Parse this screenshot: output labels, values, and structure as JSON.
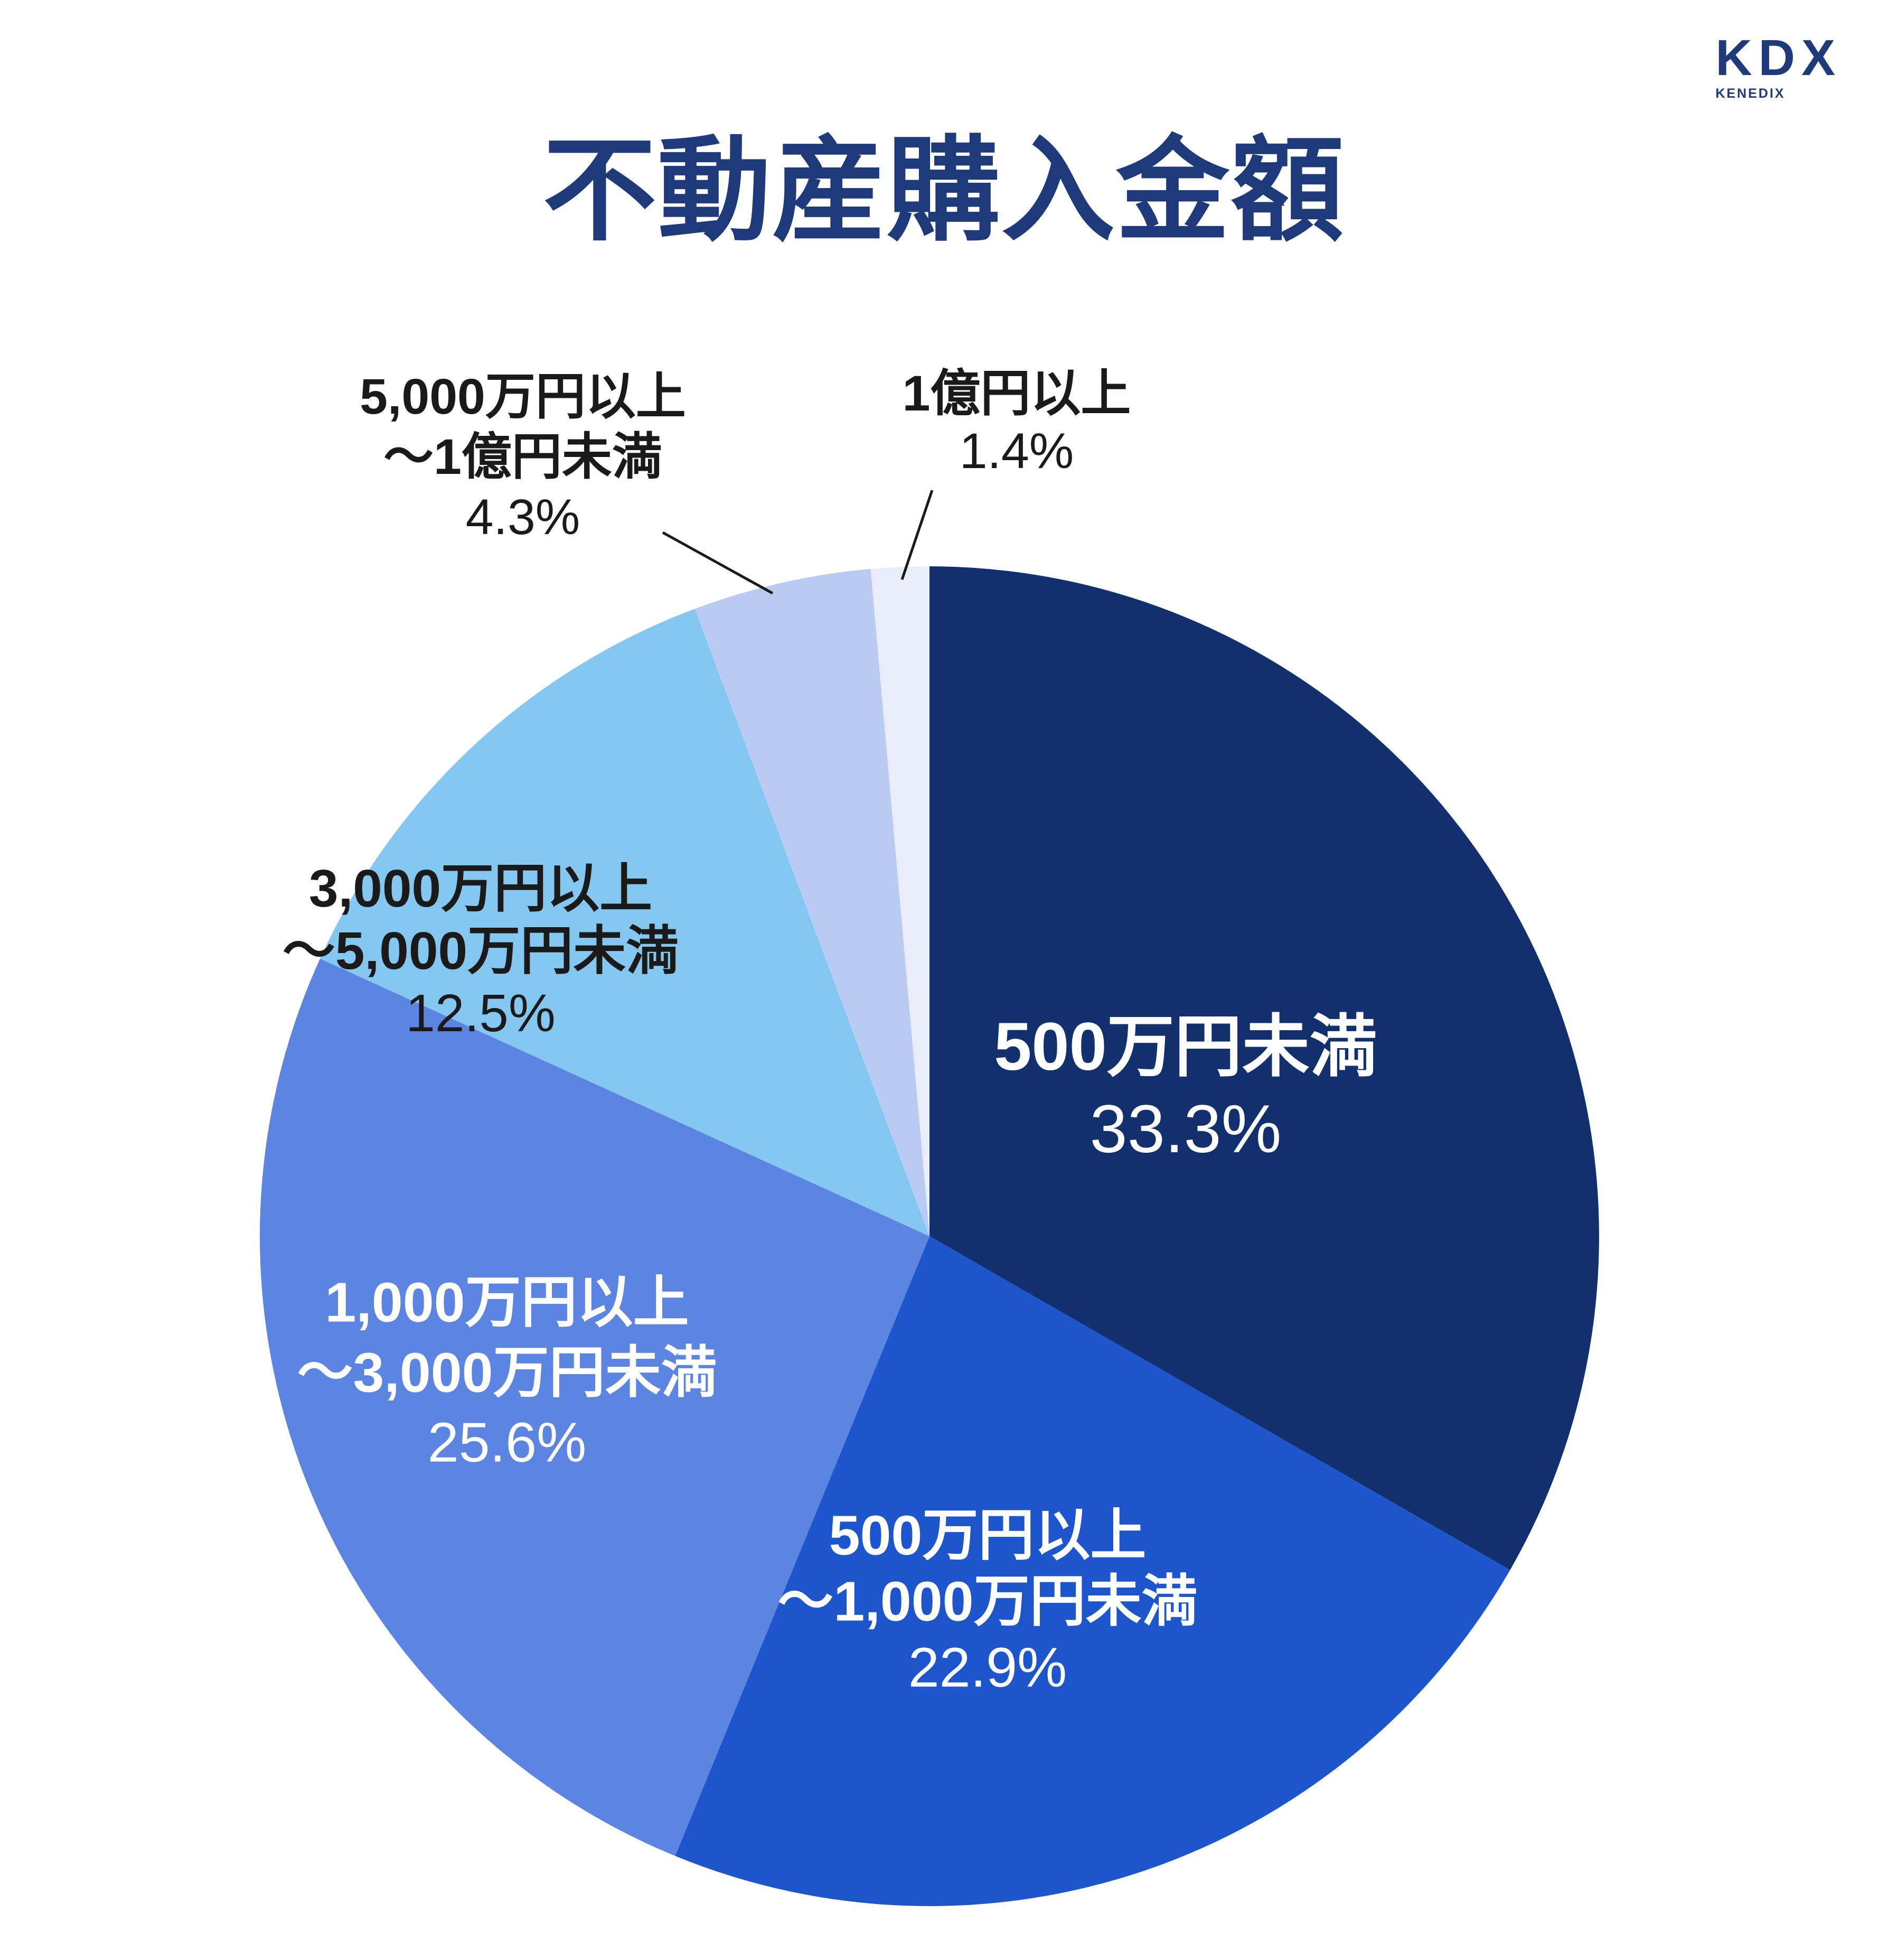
{
  "logo": {
    "text": "KDX",
    "subtext": "KENEDIX",
    "color": "#1e3a7a"
  },
  "title": {
    "text": "不動産購入金額",
    "color": "#1e3a7a"
  },
  "chart_data": {
    "type": "pie",
    "title": "不動産購入金額",
    "start_angle_deg": 0,
    "direction": "clockwise",
    "legend": "none",
    "total_pct": 100.0,
    "segments": [
      {
        "label": "500万円未満",
        "label_lines": [
          "500万円未満"
        ],
        "pct": 33.3,
        "pct_label": "33.3%",
        "color": "#12306e",
        "text_color": "#ffffff",
        "label_placement": "inside"
      },
      {
        "label": "500万円以上～1,000万円未満",
        "label_lines": [
          "500万円以上",
          "～1,000万円未満"
        ],
        "pct": 22.9,
        "pct_label": "22.9%",
        "color": "#1c55cc",
        "text_color": "#ffffff",
        "label_placement": "inside"
      },
      {
        "label": "1,000万円以上～3,000万円未満",
        "label_lines": [
          "1,000万円以上",
          "～3,000万円未満"
        ],
        "pct": 25.6,
        "pct_label": "25.6%",
        "color": "#5c85e2",
        "text_color": "#ffffff",
        "label_placement": "inside"
      },
      {
        "label": "3,000万円以上～5,000万円未満",
        "label_lines": [
          "3,000万円以上",
          "～5,000万円未満"
        ],
        "pct": 12.5,
        "pct_label": "12.5%",
        "color": "#84c7f0",
        "text_color": "#1a1a1a",
        "label_placement": "inside"
      },
      {
        "label": "5,000万円以上～1億円未満",
        "label_lines": [
          "5,000万円以上",
          "～1億円未満"
        ],
        "pct": 4.3,
        "pct_label": "4.3%",
        "color": "#b9cbf2",
        "text_color": "#1a1a1a",
        "label_placement": "outside-leader"
      },
      {
        "label": "1億円以上",
        "label_lines": [
          "1億円以上"
        ],
        "pct": 1.4,
        "pct_label": "1.4%",
        "color": "#e8edf9",
        "text_color": "#1a1a1a",
        "label_placement": "outside-leader"
      }
    ]
  }
}
